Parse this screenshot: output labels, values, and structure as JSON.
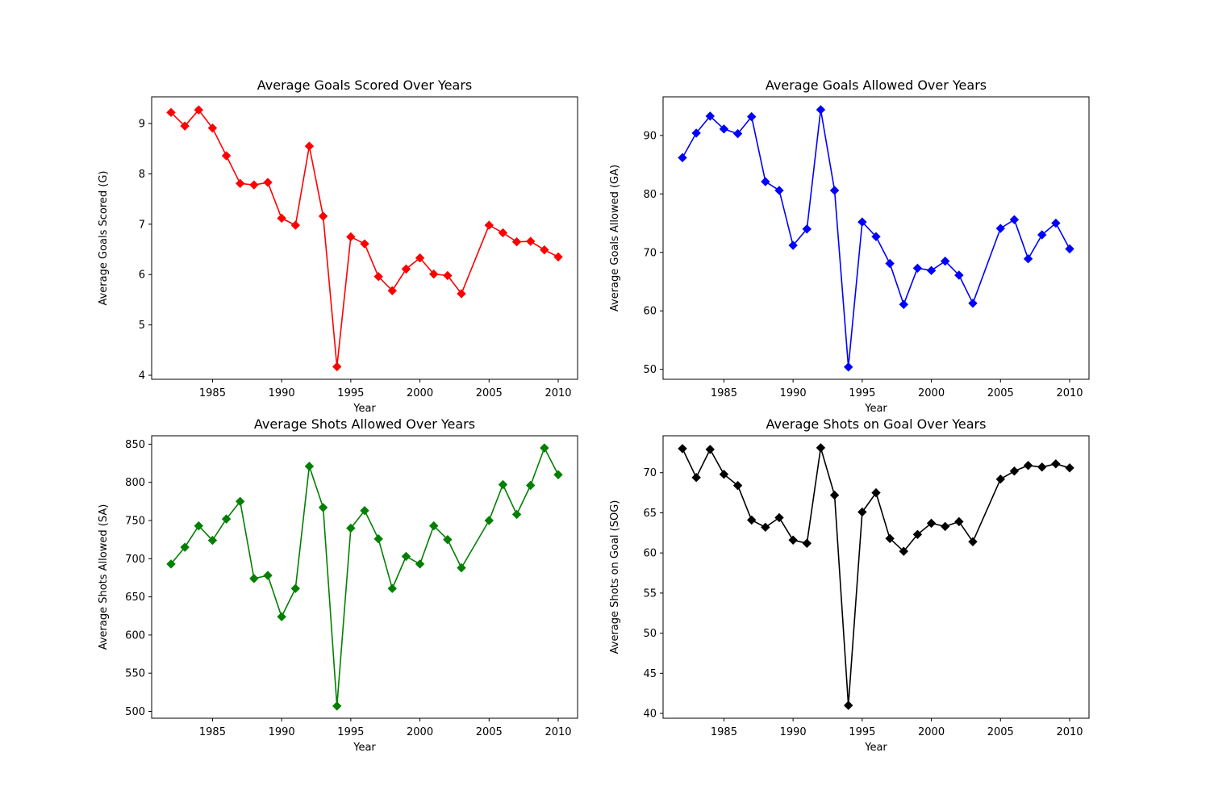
{
  "chart_data": [
    {
      "type": "line",
      "title": "Average Goals Scored Over Years",
      "xlabel": "Year",
      "ylabel": "Average Goals Scored (G)",
      "color": "#ff0000",
      "marker": "diamond",
      "grid": false,
      "xlim": [
        1980.6,
        2011.4
      ],
      "ylim": [
        3.92,
        9.53
      ],
      "xticks": [
        1985,
        1990,
        1995,
        2000,
        2005,
        2010
      ],
      "yticks": [
        4,
        5,
        6,
        7,
        8,
        9
      ],
      "x": [
        1982,
        1983,
        1984,
        1985,
        1986,
        1987,
        1988,
        1989,
        1990,
        1991,
        1992,
        1993,
        1994,
        1995,
        1996,
        1997,
        1998,
        1999,
        2000,
        2001,
        2002,
        2003,
        2005,
        2006,
        2007,
        2008,
        2009,
        2010
      ],
      "y": [
        9.22,
        8.95,
        9.27,
        8.91,
        8.36,
        7.81,
        7.78,
        7.83,
        7.12,
        6.98,
        8.55,
        7.16,
        4.17,
        6.75,
        6.61,
        5.96,
        5.68,
        6.11,
        6.33,
        6.01,
        5.98,
        5.62,
        6.98,
        6.83,
        6.65,
        6.66,
        6.49,
        6.35
      ]
    },
    {
      "type": "line",
      "title": "Average Goals Allowed Over Years",
      "xlabel": "Year",
      "ylabel": "Average Goals Allowed (GA)",
      "color": "#0000ff",
      "marker": "diamond",
      "grid": false,
      "xlim": [
        1980.6,
        2011.4
      ],
      "ylim": [
        48.3,
        96.6
      ],
      "xticks": [
        1985,
        1990,
        1995,
        2000,
        2005,
        2010
      ],
      "yticks": [
        50,
        60,
        70,
        80,
        90
      ],
      "x": [
        1982,
        1983,
        1984,
        1985,
        1986,
        1987,
        1988,
        1989,
        1990,
        1991,
        1992,
        1993,
        1994,
        1995,
        1996,
        1997,
        1998,
        1999,
        2000,
        2001,
        2002,
        2003,
        2005,
        2006,
        2007,
        2008,
        2009,
        2010
      ],
      "y": [
        86.2,
        90.4,
        93.3,
        91.1,
        90.3,
        93.2,
        82.1,
        80.6,
        71.2,
        74.0,
        94.4,
        80.6,
        50.4,
        75.2,
        72.7,
        68.1,
        61.1,
        67.3,
        66.9,
        68.5,
        66.1,
        61.3,
        74.1,
        75.6,
        68.9,
        73.0,
        75.0,
        70.6
      ]
    },
    {
      "type": "line",
      "title": "Average Shots Allowed Over Years",
      "xlabel": "Year",
      "ylabel": "Average Shots Allowed (SA)",
      "color": "#008000",
      "marker": "diamond",
      "grid": false,
      "xlim": [
        1980.6,
        2011.4
      ],
      "ylim": [
        491,
        861
      ],
      "xticks": [
        1985,
        1990,
        1995,
        2000,
        2005,
        2010
      ],
      "yticks": [
        500,
        550,
        600,
        650,
        700,
        750,
        800,
        850
      ],
      "x": [
        1982,
        1983,
        1984,
        1985,
        1986,
        1987,
        1988,
        1989,
        1990,
        1991,
        1992,
        1993,
        1994,
        1995,
        1996,
        1997,
        1998,
        1999,
        2000,
        2001,
        2002,
        2003,
        2005,
        2006,
        2007,
        2008,
        2009,
        2010
      ],
      "y": [
        693,
        715,
        743,
        724,
        752,
        775,
        674,
        678,
        624,
        661,
        821,
        767,
        507,
        740,
        763,
        726,
        661,
        703,
        693,
        743,
        725,
        688,
        750,
        797,
        758,
        796,
        845,
        810
      ]
    },
    {
      "type": "line",
      "title": "Average Shots on Goal Over Years",
      "xlabel": "Year",
      "ylabel": "Average Shots on Goal (SOG)",
      "color": "#000000",
      "marker": "diamond",
      "grid": false,
      "xlim": [
        1980.6,
        2011.4
      ],
      "ylim": [
        39.4,
        74.6
      ],
      "xticks": [
        1985,
        1990,
        1995,
        2000,
        2005,
        2010
      ],
      "yticks": [
        40,
        45,
        50,
        55,
        60,
        65,
        70
      ],
      "x": [
        1982,
        1983,
        1984,
        1985,
        1986,
        1987,
        1988,
        1989,
        1990,
        1991,
        1992,
        1993,
        1994,
        1995,
        1996,
        1997,
        1998,
        1999,
        2000,
        2001,
        2002,
        2003,
        2005,
        2006,
        2007,
        2008,
        2009,
        2010
      ],
      "y": [
        73.0,
        69.4,
        72.9,
        69.8,
        68.4,
        64.1,
        63.2,
        64.4,
        61.6,
        61.2,
        73.1,
        67.2,
        41.0,
        65.1,
        67.5,
        61.8,
        60.2,
        62.3,
        63.7,
        63.3,
        63.9,
        61.4,
        69.2,
        70.2,
        70.9,
        70.7,
        71.1,
        70.6
      ]
    }
  ]
}
